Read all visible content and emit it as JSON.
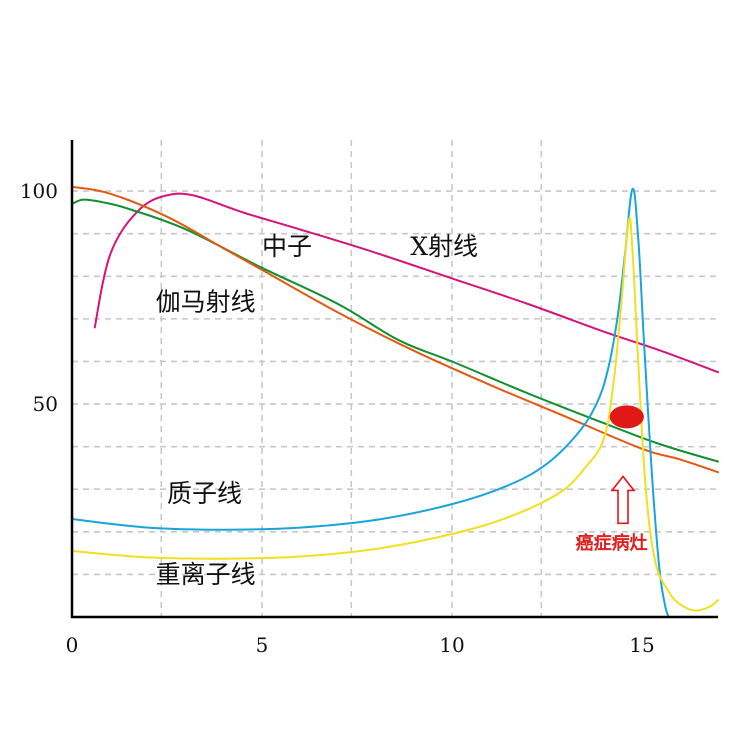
{
  "chart_data": {
    "type": "line",
    "title": "",
    "xlabel": "",
    "ylabel": "",
    "xlim": [
      0,
      17
    ],
    "ylim": [
      0,
      112
    ],
    "grid": true,
    "x_ticks": [
      {
        "value": 0,
        "label": "0"
      },
      {
        "value": 5,
        "label": "5"
      },
      {
        "value": 10,
        "label": "10"
      },
      {
        "value": 15,
        "label": "15"
      }
    ],
    "y_ticks": [
      {
        "value": 100,
        "label": "100"
      },
      {
        "value": 50,
        "label": "50"
      }
    ],
    "x_gridlines": [
      2.35,
      5,
      7.35,
      10,
      12.35
    ],
    "y_gridlines": [
      10,
      20,
      30,
      40,
      50,
      60,
      70,
      80,
      90,
      100
    ],
    "series": [
      {
        "name": "X射线",
        "color": "#d4147a",
        "label_at": [
          8.9,
          85
        ],
        "points": [
          [
            0.6,
            68
          ],
          [
            0.8,
            78
          ],
          [
            1.0,
            85
          ],
          [
            1.3,
            90.5
          ],
          [
            1.7,
            95
          ],
          [
            2.1,
            97.8
          ],
          [
            2.6,
            99.2
          ],
          [
            3.0,
            99.3
          ],
          [
            3.5,
            98.2
          ],
          [
            4.5,
            95
          ],
          [
            6,
            91
          ],
          [
            8,
            85.5
          ],
          [
            10,
            79.5
          ],
          [
            12,
            73.5
          ],
          [
            14,
            67
          ],
          [
            15.5,
            62.5
          ],
          [
            17,
            57.5
          ]
        ]
      },
      {
        "name": "伽马射线",
        "color": "#119030",
        "label_at": [
          2.2,
          72
        ],
        "points": [
          [
            0,
            97
          ],
          [
            0.3,
            98
          ],
          [
            0.8,
            97.4
          ],
          [
            1.5,
            95.8
          ],
          [
            3,
            91
          ],
          [
            5,
            82
          ],
          [
            7,
            73.5
          ],
          [
            8.6,
            65
          ],
          [
            10,
            60
          ],
          [
            12,
            52.5
          ],
          [
            14,
            45.5
          ],
          [
            15.5,
            40.5
          ],
          [
            17,
            36.5
          ]
        ]
      },
      {
        "name": "中子",
        "color": "#e05a10",
        "label_at": [
          5,
          85
        ],
        "points": [
          [
            0,
            101
          ],
          [
            1,
            99.4
          ],
          [
            2.5,
            94
          ],
          [
            4,
            86.5
          ],
          [
            5,
            81.5
          ],
          [
            7,
            71.5
          ],
          [
            9,
            62.5
          ],
          [
            11,
            54.5
          ],
          [
            13,
            47
          ],
          [
            15,
            39.5
          ],
          [
            16,
            37
          ],
          [
            17,
            34
          ]
        ]
      },
      {
        "name": "质子线",
        "color": "#18a4dc",
        "label_at": [
          2.5,
          27
        ],
        "points": [
          [
            0,
            23
          ],
          [
            2,
            21
          ],
          [
            4,
            20.5
          ],
          [
            6,
            21
          ],
          [
            8,
            22.8
          ],
          [
            10,
            26.5
          ],
          [
            11.5,
            31
          ],
          [
            12.5,
            36
          ],
          [
            13.3,
            43
          ],
          [
            13.8,
            50
          ],
          [
            14.1,
            58
          ],
          [
            14.35,
            70
          ],
          [
            14.55,
            85
          ],
          [
            14.75,
            100.5
          ],
          [
            14.9,
            89
          ],
          [
            15.05,
            65
          ],
          [
            15.25,
            35
          ],
          [
            15.45,
            12
          ],
          [
            15.6,
            3
          ],
          [
            15.7,
            0
          ]
        ]
      },
      {
        "name": "重离子线",
        "color": "#f0e020",
        "label_at": [
          2.2,
          8
        ],
        "points": [
          [
            0,
            15.5
          ],
          [
            2,
            14
          ],
          [
            4,
            13.7
          ],
          [
            6,
            14.2
          ],
          [
            8,
            16
          ],
          [
            10,
            19.5
          ],
          [
            11.5,
            23.5
          ],
          [
            12.8,
            29
          ],
          [
            13.5,
            35
          ],
          [
            14,
            42
          ],
          [
            14.25,
            55
          ],
          [
            14.45,
            73
          ],
          [
            14.65,
            93
          ],
          [
            14.75,
            86
          ],
          [
            14.9,
            60
          ],
          [
            15.1,
            30
          ],
          [
            15.35,
            13
          ],
          [
            15.7,
            6
          ],
          [
            16,
            3
          ],
          [
            16.4,
            1.5
          ],
          [
            16.8,
            2.5
          ],
          [
            17,
            4
          ]
        ]
      }
    ],
    "annotations": [
      {
        "name": "lesion-marker",
        "type": "ellipse",
        "x": 14.6,
        "y": 47,
        "rx": 0.45,
        "ry": 2.7,
        "color": "#e01818"
      },
      {
        "name": "lesion-arrow",
        "type": "arrow",
        "x": 14.5,
        "y_from": 22,
        "y_to": 33,
        "color": "#e01818"
      },
      {
        "name": "lesion-label",
        "type": "text",
        "text": "癌症病灶",
        "x": 14.2,
        "y": 16,
        "color": "#e02020"
      }
    ]
  }
}
